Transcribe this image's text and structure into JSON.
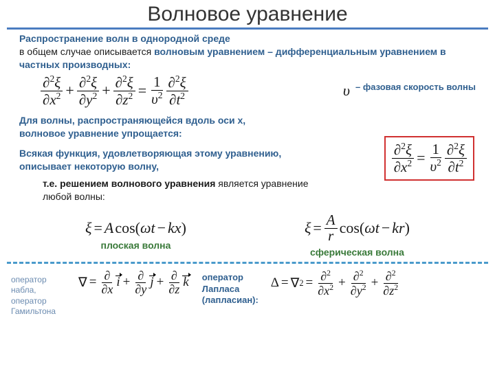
{
  "colors": {
    "hr": "#4a7cc0",
    "dash": "#4a9acb",
    "accent": "#2f5f8f",
    "box": "#d03030",
    "green": "#3a7a3a",
    "oplabel": "#6b8bb0"
  },
  "title": "Волновое уравнение",
  "intro": {
    "l1a": "Распространение волн в однородной среде",
    "l2a": "в общем случае описывается ",
    "l2b": "волновым уравнением – дифференциальным уравнением в частных производных:"
  },
  "upsilon": {
    "sym": "υ",
    "text": "– фазовая скорость волны"
  },
  "p2": "Для волны, распространяющейся вдоль оси x, волновое уравнение упрощается:",
  "p3": "Всякая функция, удовлетворяющая этому уравнению, описывает некоторую волну,",
  "p4a": "т.е. решением волнового уравнения",
  "p4b": " является уравнение любой волны:",
  "plane": "плоская волна",
  "sphere": "сферическая волна",
  "nabla_label": "оператор набла, оператор Гамильтона",
  "laplace_label": "оператор Лапласа (лапласиан):",
  "eq_full": {
    "terms": [
      {
        "d": "∂",
        "sv": "2",
        "var": "ξ",
        "den": "x"
      },
      {
        "d": "∂",
        "sv": "2",
        "var": "ξ",
        "den": "y"
      },
      {
        "d": "∂",
        "sv": "2",
        "var": "ξ",
        "den": "z"
      }
    ],
    "rhs_num": "1",
    "rhs_denvar": "υ",
    "rhs_densup": "2",
    "rhs2": {
      "d": "∂",
      "sv": "2",
      "var": "ξ",
      "den": "t"
    }
  },
  "eq_box": {
    "lhs": {
      "d": "∂",
      "sv": "2",
      "var": "ξ",
      "den": "x"
    },
    "rhs_num": "1",
    "rhs_denvar": "υ",
    "rhs_densup": "2",
    "rhs2": {
      "d": "∂",
      "sv": "2",
      "var": "ξ",
      "den": "t"
    }
  },
  "eq_plane": {
    "xi": "ξ",
    "A": "A",
    "fn": "cos",
    "w": "ω",
    "t": "t",
    "k": "k",
    "x": "x"
  },
  "eq_sphere": {
    "xi": "ξ",
    "A": "A",
    "r": "r",
    "fn": "cos",
    "w": "ω",
    "t": "t",
    "k": "k",
    "x": "r"
  },
  "eq_nabla": {
    "sym": "∇",
    "d": "∂",
    "parts": [
      {
        "v": "x",
        "u": "i"
      },
      {
        "v": "y",
        "u": "j"
      },
      {
        "v": "z",
        "u": "k"
      }
    ]
  },
  "eq_lap": {
    "D": "Δ",
    "sym": "∇",
    "sup": "2",
    "d": "∂",
    "parts": [
      "x",
      "y",
      "z"
    ]
  }
}
